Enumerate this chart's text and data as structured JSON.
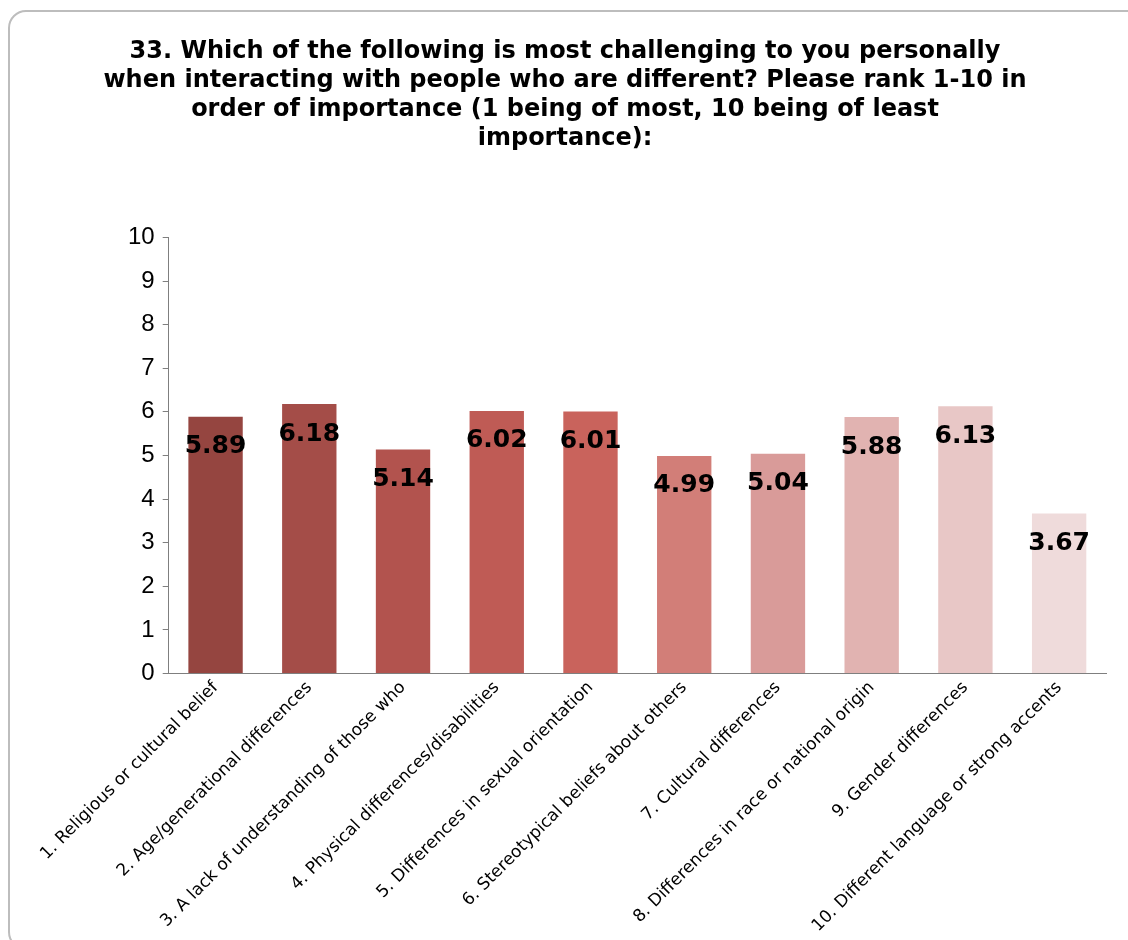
{
  "chart_data": {
    "type": "bar",
    "title": "33. Which of the following is most challenging to you personally when interacting with people who are different? Please rank 1-10 in order of importance (1 being of most, 10 being of least importance):",
    "categories": [
      "1. Religious or cultural belief",
      "2. Age/generational differences",
      "3. A lack of understanding of those who",
      "4. Physical differences/disabilities",
      "5. Differences in sexual orientation",
      "6. Stereotypical beliefs about others",
      "7. Cultural differences",
      "8. Differences in race or national origin",
      "9. Gender differences",
      "10. Different language or strong accents"
    ],
    "values": [
      5.89,
      6.18,
      5.14,
      6.02,
      6.01,
      4.99,
      5.04,
      5.88,
      6.13,
      3.67
    ],
    "colors": [
      "#954540",
      "#a44d48",
      "#b2534e",
      "#bf5b55",
      "#c9635c",
      "#d27e78",
      "#d99b99",
      "#e1b3b1",
      "#e8c7c6",
      "#efdbdb"
    ],
    "ylim": [
      0,
      10
    ],
    "yticks": [
      0,
      1,
      2,
      3,
      4,
      5,
      6,
      7,
      8,
      9,
      10
    ],
    "grid": false,
    "legend": false,
    "data_labels": true
  }
}
